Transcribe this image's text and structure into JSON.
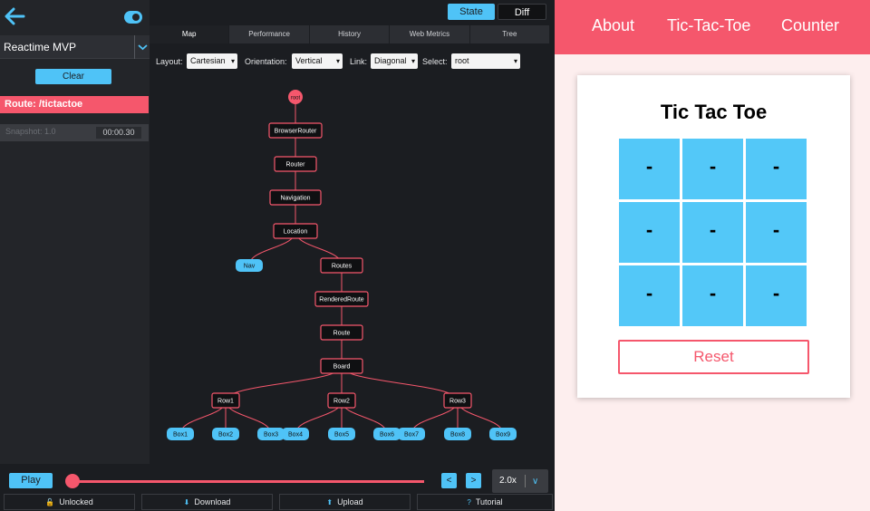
{
  "sidebar": {
    "project": "Reactime MVP",
    "clear_label": "Clear",
    "route": "Route: /tictactoe",
    "snapshot_label": "Snapshot: 1.0",
    "snapshot_time": "00:00.30"
  },
  "header": {
    "state_label": "State",
    "diff_label": "Diff"
  },
  "tabs": [
    {
      "label": "Map",
      "active": true
    },
    {
      "label": "Performance"
    },
    {
      "label": "History"
    },
    {
      "label": "Web Metrics"
    },
    {
      "label": "Tree"
    }
  ],
  "controls": {
    "layout_label": "Layout:",
    "layout_value": "Cartesian",
    "orientation_label": "Orientation:",
    "orientation_value": "Vertical",
    "link_label": "Link:",
    "link_value": "Diagonal",
    "select_label": "Select:",
    "select_value": "root"
  },
  "tree": {
    "nodes": [
      {
        "id": "root",
        "label": "root",
        "kind": "root"
      },
      {
        "id": "br",
        "label": "BrowserRouter",
        "kind": "box",
        "parent": "root"
      },
      {
        "id": "router",
        "label": "Router",
        "kind": "box",
        "parent": "br"
      },
      {
        "id": "nav",
        "label": "Navigation",
        "kind": "box",
        "parent": "router"
      },
      {
        "id": "loc",
        "label": "Location",
        "kind": "box",
        "parent": "nav"
      },
      {
        "id": "navleaf",
        "label": "Nav",
        "kind": "leaf",
        "parent": "loc"
      },
      {
        "id": "routes",
        "label": "Routes",
        "kind": "box",
        "parent": "loc"
      },
      {
        "id": "rroute",
        "label": "RenderedRoute",
        "kind": "box",
        "parent": "routes"
      },
      {
        "id": "route",
        "label": "Route",
        "kind": "box",
        "parent": "rroute"
      },
      {
        "id": "board",
        "label": "Board",
        "kind": "box",
        "parent": "route"
      },
      {
        "id": "row1",
        "label": "Row1",
        "kind": "box",
        "parent": "board"
      },
      {
        "id": "row2",
        "label": "Row2",
        "kind": "box",
        "parent": "board"
      },
      {
        "id": "row3",
        "label": "Row3",
        "kind": "box",
        "parent": "board"
      },
      {
        "id": "b1",
        "label": "Box1",
        "kind": "leaf",
        "parent": "row1"
      },
      {
        "id": "b2",
        "label": "Box2",
        "kind": "leaf",
        "parent": "row1"
      },
      {
        "id": "b3",
        "label": "Box3",
        "kind": "leaf",
        "parent": "row1"
      },
      {
        "id": "b4",
        "label": "Box4",
        "kind": "leaf",
        "parent": "row2"
      },
      {
        "id": "b5",
        "label": "Box5",
        "kind": "leaf",
        "parent": "row2"
      },
      {
        "id": "b6",
        "label": "Box6",
        "kind": "leaf",
        "parent": "row2"
      },
      {
        "id": "b7",
        "label": "Box7",
        "kind": "leaf",
        "parent": "row3"
      },
      {
        "id": "b8",
        "label": "Box8",
        "kind": "leaf",
        "parent": "row3"
      },
      {
        "id": "b9",
        "label": "Box9",
        "kind": "leaf",
        "parent": "row3"
      }
    ]
  },
  "app": {
    "nav": [
      "About",
      "Tic-Tac-Toe",
      "Counter"
    ],
    "title": "Tic Tac Toe",
    "cells": [
      "-",
      "-",
      "-",
      "-",
      "-",
      "-",
      "-",
      "-",
      "-"
    ],
    "reset_label": "Reset"
  },
  "playback": {
    "play_label": "Play",
    "prev_label": "<",
    "next_label": ">",
    "speed": "2.0x"
  },
  "actions": {
    "unlocked": "Unlocked",
    "download": "Download",
    "upload": "Upload",
    "tutorial": "Tutorial"
  },
  "colors": {
    "accent": "#4fc3f7",
    "brand": "#f5576c",
    "panel": "#1b1d21"
  }
}
